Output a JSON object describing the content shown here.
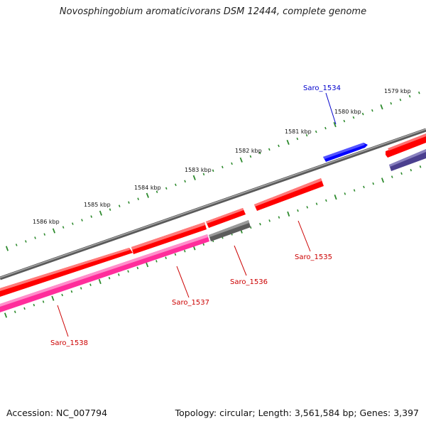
{
  "title": "Novosphingobium aromaticivorans DSM 12444, complete genome",
  "footer": {
    "accession": "Accession: NC_007794",
    "topology": "Topology: circular; Length: 3,561,584 bp; Genes: 3,397"
  },
  "colors": {
    "tick": "#2e8b2e",
    "backbone": "#808080",
    "red_gene": "#ff0000",
    "pink_gene": "#ff2d9b",
    "gray_gene": "#707070",
    "blue_gene": "#0000ff",
    "indigo_gene": "#4b3f8f",
    "red_label": "#cc0000",
    "blue_label": "#0000cc"
  },
  "scale_labels": [
    {
      "text": "1579 kbp"
    },
    {
      "text": "1580 kbp"
    },
    {
      "text": "1581 kbp"
    },
    {
      "text": "1582 kbp"
    },
    {
      "text": "1583 kbp"
    },
    {
      "text": "1584 kbp"
    },
    {
      "text": "1585 kbp"
    },
    {
      "text": "1586 kbp"
    }
  ],
  "genes": [
    {
      "name": "Saro_1534",
      "color": "blue"
    },
    {
      "name": "Saro_1535",
      "color": "red"
    },
    {
      "name": "Saro_1536",
      "color": "gray"
    },
    {
      "name": "Saro_1537",
      "color": "red"
    },
    {
      "name": "Saro_1538",
      "color": "pink"
    }
  ]
}
